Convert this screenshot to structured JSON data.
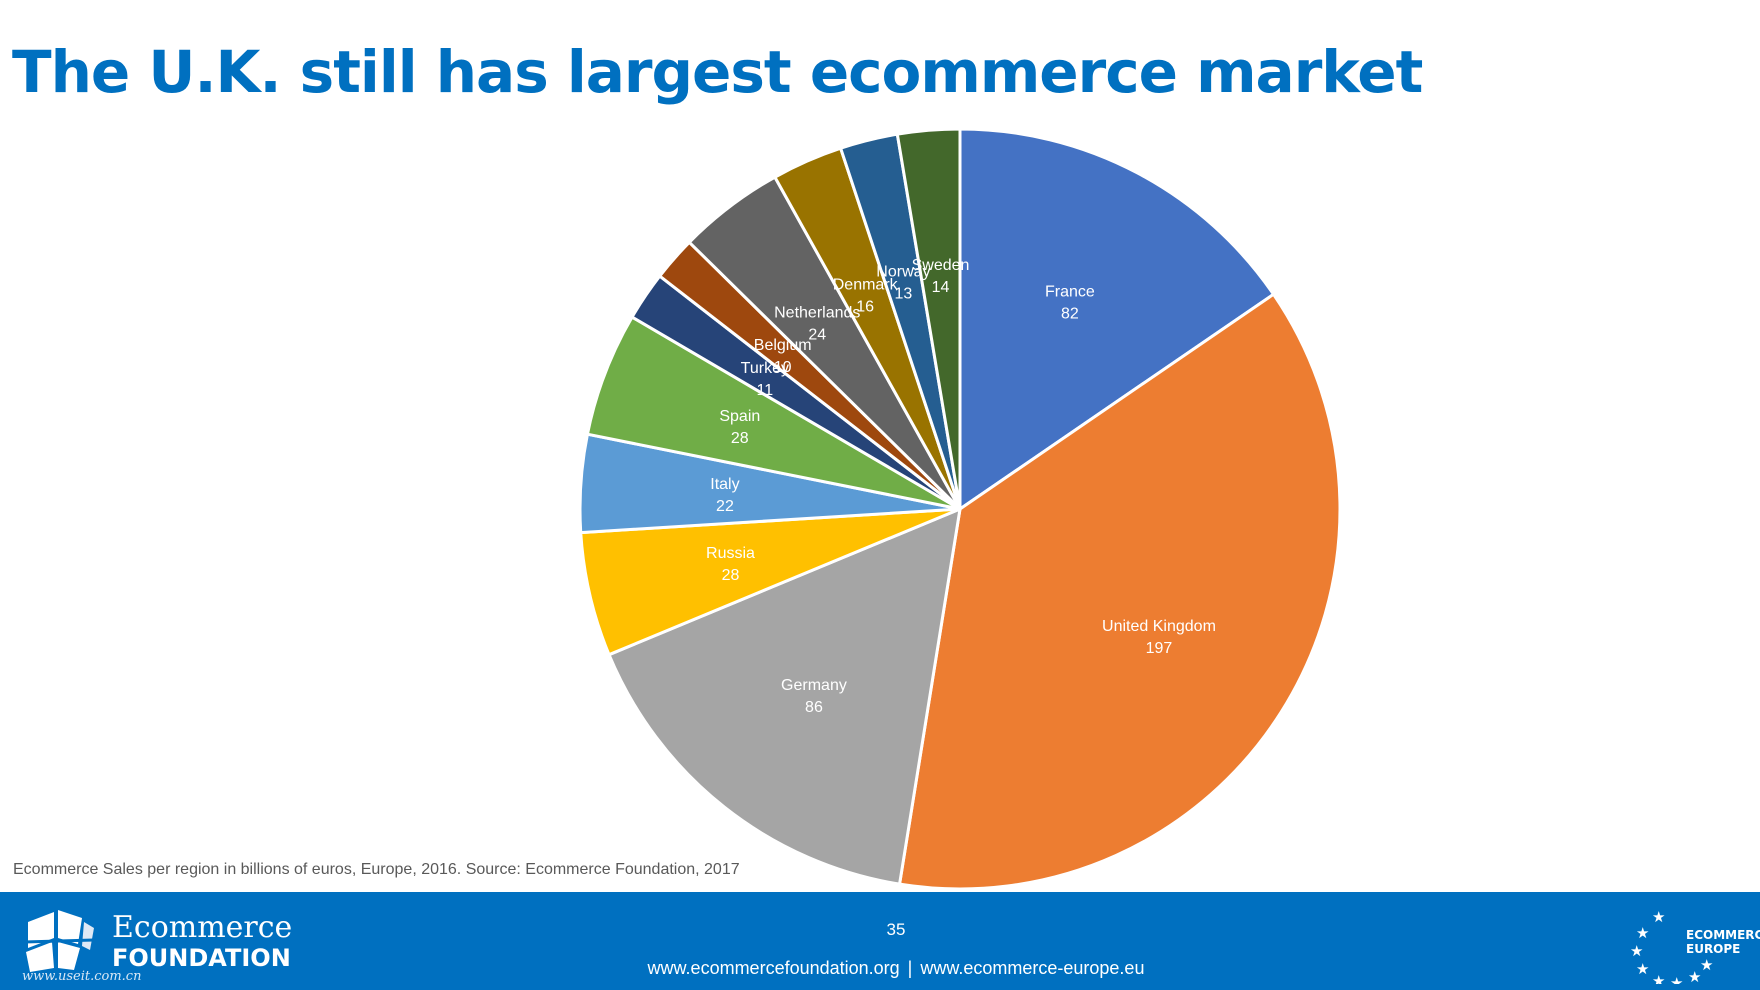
{
  "slide": {
    "title": "The U.K. still has largest ecommerce market",
    "source": "Ecommerce Sales per region in billions of euros, Europe, 2016. Source: Ecommerce Foundation, 2017",
    "page_number": "35"
  },
  "footer": {
    "link_1": "www.ecommercefoundation.org",
    "separator": "|",
    "link_2": "www.ecommerce-europe.eu",
    "left_logo_name": "Ecommerce",
    "left_logo_sub": "FOUNDATION",
    "watermark": "www.useit.com.cn",
    "right_logo_line1": "ECOMMERCE",
    "right_logo_line2": "EUROPE",
    "bar_color": "#0070c0"
  },
  "chart_data": {
    "type": "pie",
    "title": "",
    "slices": [
      {
        "label": "France",
        "value": 82,
        "color": "#4472c4"
      },
      {
        "label": "United Kingdom",
        "value": 197,
        "color": "#ed7d31"
      },
      {
        "label": "Germany",
        "value": 86,
        "color": "#a5a5a5"
      },
      {
        "label": "Russia",
        "value": 28,
        "color": "#ffc000"
      },
      {
        "label": "Italy",
        "value": 22,
        "color": "#5b9bd5"
      },
      {
        "label": "Spain",
        "value": 28,
        "color": "#70ad47"
      },
      {
        "label": "Turkey",
        "value": 11,
        "color": "#264478"
      },
      {
        "label": "Belgium",
        "value": 10,
        "color": "#9e480e"
      },
      {
        "label": "Netherlands",
        "value": 24,
        "color": "#636363"
      },
      {
        "label": "Denmark",
        "value": 16,
        "color": "#997300"
      },
      {
        "label": "Norway",
        "value": 13,
        "color": "#255e91"
      },
      {
        "label": "Sweden",
        "value": 14,
        "color": "#43682b"
      }
    ],
    "start": "12 o'clock",
    "direction": "clockwise",
    "data_labels": "label and value, inside slices",
    "legend": "none"
  }
}
